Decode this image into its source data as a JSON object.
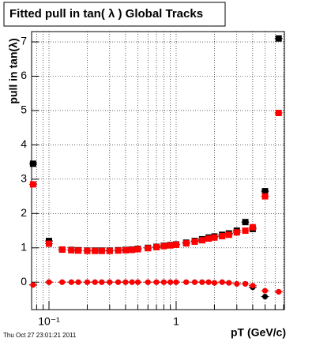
{
  "chart_data": {
    "type": "scatter",
    "title": "Fitted pull in tan( λ )  Global Tracks",
    "y_label": "pull in tan(λ)",
    "x_label": "pT (GeV/c)",
    "footer": "Thu Oct 27 23:01:21 2011",
    "log_x": true,
    "grid": true,
    "xlim": [
      0.073,
      7.1
    ],
    "ylim": [
      -0.8,
      7.3
    ],
    "xticks": [
      {
        "value": 0.1,
        "label": "10⁻¹"
      },
      1
    ],
    "xminorticks": [
      0.08,
      0.09,
      0.2,
      0.3,
      0.4,
      0.5,
      0.6,
      0.7,
      0.8,
      0.9,
      2,
      3,
      4,
      5,
      6,
      7
    ],
    "yticks": [
      0,
      1,
      2,
      3,
      4,
      5,
      6,
      7
    ],
    "x": [
      0.075,
      0.1,
      0.127,
      0.15,
      0.17,
      0.2,
      0.23,
      0.26,
      0.3,
      0.35,
      0.4,
      0.45,
      0.5,
      0.6,
      0.7,
      0.8,
      0.9,
      1.0,
      1.2,
      1.4,
      1.6,
      1.8,
      2.0,
      2.3,
      2.6,
      3.0,
      3.5,
      4.0,
      5.0,
      6.4
    ],
    "series": [
      {
        "color": "#000000",
        "marker": "square",
        "values": [
          3.45,
          1.2,
          0.95,
          0.94,
          0.93,
          0.92,
          0.92,
          0.92,
          0.92,
          0.93,
          0.94,
          0.95,
          0.97,
          1.0,
          1.03,
          1.06,
          1.08,
          1.1,
          1.15,
          1.2,
          1.25,
          1.3,
          1.33,
          1.38,
          1.42,
          1.5,
          1.75,
          1.55,
          2.65,
          7.1
        ]
      },
      {
        "color": "#ff0000",
        "marker": "square",
        "values": [
          2.85,
          1.12,
          0.95,
          0.93,
          0.92,
          0.91,
          0.91,
          0.91,
          0.91,
          0.92,
          0.93,
          0.94,
          0.96,
          0.99,
          1.02,
          1.05,
          1.07,
          1.09,
          1.13,
          1.18,
          1.22,
          1.27,
          1.3,
          1.34,
          1.38,
          1.45,
          1.5,
          1.6,
          2.5,
          4.93
        ]
      },
      {
        "color": "#000000",
        "marker": "circle",
        "values": [
          -0.08,
          0.0,
          0.0,
          0.0,
          0.0,
          0.0,
          0.0,
          0.0,
          0.0,
          0.0,
          0.0,
          0.0,
          0.0,
          0.0,
          0.0,
          0.0,
          0.0,
          0.0,
          0.0,
          0.0,
          0.0,
          0.0,
          -0.02,
          0.0,
          -0.02,
          -0.05,
          -0.05,
          -0.15,
          -0.42,
          -0.28
        ]
      },
      {
        "color": "#ff0000",
        "marker": "circle",
        "values": [
          -0.08,
          0.0,
          0.0,
          0.0,
          0.0,
          0.0,
          0.0,
          0.0,
          0.0,
          0.0,
          0.0,
          0.0,
          0.0,
          0.0,
          0.0,
          0.0,
          0.0,
          0.0,
          0.0,
          0.0,
          0.0,
          0.0,
          -0.02,
          0.0,
          -0.02,
          -0.05,
          -0.05,
          -0.1,
          -0.25,
          -0.28
        ]
      }
    ]
  }
}
